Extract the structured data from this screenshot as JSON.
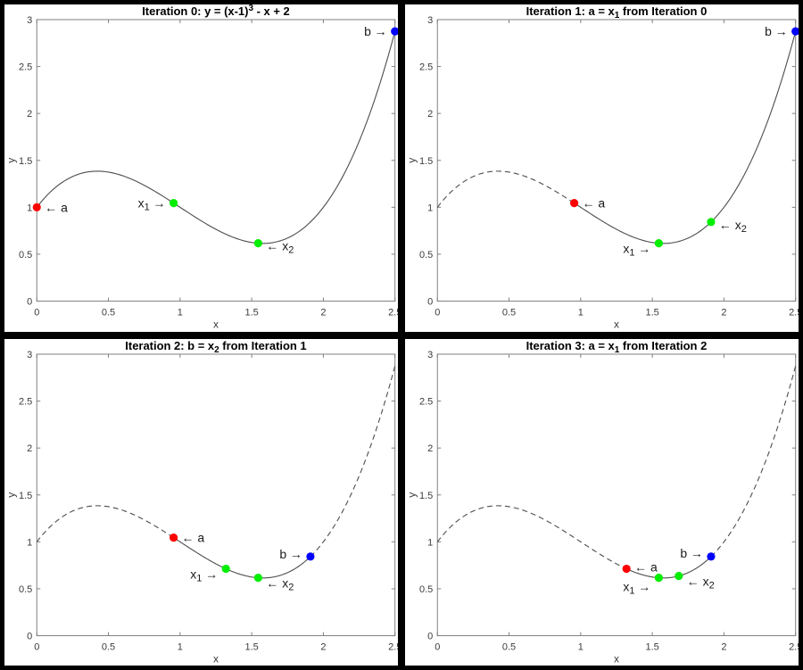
{
  "figure": {
    "background": "#000000",
    "panel_background": "#ffffff",
    "curve_color": "#4d4d4d",
    "axes_color": "#808080",
    "tick_label_color": "#3c3c3c",
    "title_color": "#000000",
    "annotation_color": "#1a1a1a"
  },
  "chart_data": {
    "type": "line",
    "function_label": "y = (x-1)^3 - x + 2",
    "curve": {
      "shift": 1,
      "power": 3,
      "linear": -1,
      "constant": 2
    },
    "axes": {
      "xlim": [
        0,
        2.5
      ],
      "ylim": [
        0,
        3
      ],
      "xticks": [
        "0",
        "0.5",
        "1",
        "1.5",
        "2",
        "2.5"
      ],
      "xtick_values": [
        0,
        0.5,
        1,
        1.5,
        2,
        2.5
      ],
      "yticks": [
        "0",
        "0.5",
        "1",
        "1.5",
        "2",
        "2.5",
        "3"
      ],
      "ytick_values": [
        0,
        0.5,
        1,
        1.5,
        2,
        2.5,
        3
      ],
      "xlabel": "x",
      "ylabel": "y",
      "grid": false,
      "box": true
    },
    "point_colors": {
      "a": "#ff0000",
      "x1": "#00ee00",
      "x2": "#00ee00",
      "b": "#0000ff"
    },
    "subplots": [
      {
        "id": "iteration-0",
        "title": [
          {
            "t": "Iteration 0: y = (x-1)"
          },
          {
            "t": "3",
            "sup": true
          },
          {
            "t": " - x + 2"
          }
        ],
        "solid_range": [
          0,
          2.5
        ],
        "dashed_ranges": [],
        "points": [
          {
            "name": "a",
            "x": 0,
            "y": 1,
            "color": "a",
            "label": [
              {
                "t": "← a"
              }
            ],
            "side": "right",
            "dy": 0
          },
          {
            "name": "x1",
            "x": 0.9549,
            "y": 1.045,
            "color": "x1",
            "label": [
              {
                "t": "x"
              },
              {
                "t": "1",
                "sub": true
              },
              {
                "t": " →"
              }
            ],
            "side": "left",
            "dy": 0
          },
          {
            "name": "x2",
            "x": 1.5451,
            "y": 0.6169,
            "color": "x2",
            "label": [
              {
                "t": "← x"
              },
              {
                "t": "2",
                "sub": true
              }
            ],
            "side": "right",
            "dy": 3
          },
          {
            "name": "b",
            "x": 2.5,
            "y": 2.875,
            "color": "b",
            "label": [
              {
                "t": "b →"
              }
            ],
            "side": "left",
            "dy": 0
          }
        ]
      },
      {
        "id": "iteration-1",
        "title": [
          {
            "t": "Iteration 1: a = x"
          },
          {
            "t": "1",
            "sub": true
          },
          {
            "t": " from Iteration 0"
          }
        ],
        "solid_range": [
          0.9549,
          2.5
        ],
        "dashed_ranges": [
          [
            0,
            0.9549
          ]
        ],
        "points": [
          {
            "name": "a",
            "x": 0.9549,
            "y": 1.045,
            "color": "a",
            "label": [
              {
                "t": "← a"
              }
            ],
            "side": "right",
            "dy": 0
          },
          {
            "name": "x1",
            "x": 1.5451,
            "y": 0.6169,
            "color": "x1",
            "label": [
              {
                "t": "x"
              },
              {
                "t": "1",
                "sub": true
              },
              {
                "t": " →"
              }
            ],
            "side": "left",
            "dy": 6
          },
          {
            "name": "x2",
            "x": 1.9098,
            "y": 0.8434,
            "color": "x2",
            "label": [
              {
                "t": "← x"
              },
              {
                "t": "2",
                "sub": true
              }
            ],
            "side": "right",
            "dy": 3
          },
          {
            "name": "b",
            "x": 2.5,
            "y": 2.875,
            "color": "b",
            "label": [
              {
                "t": "b →"
              }
            ],
            "side": "left",
            "dy": 0
          }
        ]
      },
      {
        "id": "iteration-2",
        "title": [
          {
            "t": "Iteration 2: b = x"
          },
          {
            "t": "2",
            "sub": true
          },
          {
            "t": " from Iteration 1"
          }
        ],
        "solid_range": [
          0.9549,
          1.9098
        ],
        "dashed_ranges": [
          [
            0,
            0.9549
          ],
          [
            1.9098,
            2.5
          ]
        ],
        "points": [
          {
            "name": "a",
            "x": 0.9549,
            "y": 1.045,
            "color": "a",
            "label": [
              {
                "t": "← a"
              }
            ],
            "side": "right",
            "dy": 0
          },
          {
            "name": "x1",
            "x": 1.3197,
            "y": 0.713,
            "color": "x1",
            "label": [
              {
                "t": "x"
              },
              {
                "t": "1",
                "sub": true
              },
              {
                "t": " →"
              }
            ],
            "side": "left",
            "dy": 6
          },
          {
            "name": "x2",
            "x": 1.5451,
            "y": 0.6169,
            "color": "x2",
            "label": [
              {
                "t": "← x"
              },
              {
                "t": "2",
                "sub": true
              }
            ],
            "side": "right",
            "dy": 6
          },
          {
            "name": "b",
            "x": 1.9098,
            "y": 0.8434,
            "color": "b",
            "label": [
              {
                "t": "b →"
              }
            ],
            "side": "left",
            "dy": -3
          }
        ]
      },
      {
        "id": "iteration-3",
        "title": [
          {
            "t": "Iteration 3: a = x"
          },
          {
            "t": "1",
            "sub": true
          },
          {
            "t": " from Iteration 2"
          }
        ],
        "solid_range": [
          1.3197,
          1.9098
        ],
        "dashed_ranges": [
          [
            0,
            1.3197
          ],
          [
            1.9098,
            2.5
          ]
        ],
        "points": [
          {
            "name": "a",
            "x": 1.3197,
            "y": 0.713,
            "color": "a",
            "label": [
              {
                "t": "← a"
              }
            ],
            "side": "right",
            "dy": -2
          },
          {
            "name": "x1",
            "x": 1.5451,
            "y": 0.6169,
            "color": "x1",
            "label": [
              {
                "t": "x"
              },
              {
                "t": "1",
                "sub": true
              },
              {
                "t": " →"
              }
            ],
            "side": "left",
            "dy": 10
          },
          {
            "name": "x2",
            "x": 1.6847,
            "y": 0.6363,
            "color": "x2",
            "label": [
              {
                "t": "← x"
              },
              {
                "t": "2",
                "sub": true
              }
            ],
            "side": "right",
            "dy": 6
          },
          {
            "name": "b",
            "x": 1.9098,
            "y": 0.8434,
            "color": "b",
            "label": [
              {
                "t": "b →"
              }
            ],
            "side": "left",
            "dy": -4
          }
        ]
      }
    ]
  }
}
